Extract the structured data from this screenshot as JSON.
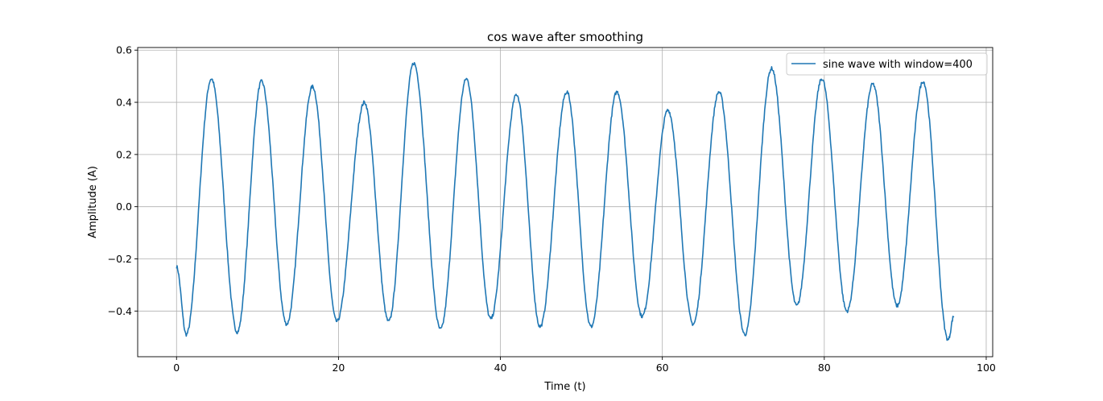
{
  "chart_data": {
    "type": "line",
    "title": "cos wave after smoothing",
    "xlabel": "Time (t)",
    "ylabel": "Amplitude (A)",
    "xlim": [
      -4.8,
      100.8
    ],
    "ylim": [
      -0.575,
      0.61
    ],
    "xticks": [
      0,
      20,
      40,
      60,
      80,
      100
    ],
    "yticks": [
      -0.4,
      -0.2,
      0.0,
      0.2,
      0.4,
      0.6
    ],
    "xtick_labels": [
      "0",
      "20",
      "40",
      "60",
      "80",
      "100"
    ],
    "ytick_labels": [
      "−0.4",
      "−0.2",
      "0.0",
      "0.2",
      "0.4",
      "0.6"
    ],
    "grid": true,
    "legend": "top-right",
    "color": "#1f77b4",
    "series": [
      {
        "name": "sine wave with window=400",
        "start": [
          0.0,
          -0.23
        ],
        "end": [
          96.0,
          -0.42
        ],
        "extrema": [
          [
            0.0,
            -0.23
          ],
          [
            1.2,
            -0.49
          ],
          [
            4.3,
            0.49
          ],
          [
            7.5,
            -0.48
          ],
          [
            10.5,
            0.48
          ],
          [
            13.6,
            -0.45
          ],
          [
            16.8,
            0.46
          ],
          [
            19.8,
            -0.44
          ],
          [
            23.2,
            0.4
          ],
          [
            26.2,
            -0.44
          ],
          [
            29.3,
            0.55
          ],
          [
            32.6,
            -0.47
          ],
          [
            35.8,
            0.49
          ],
          [
            38.8,
            -0.43
          ],
          [
            42.0,
            0.43
          ],
          [
            44.9,
            -0.46
          ],
          [
            48.2,
            0.44
          ],
          [
            51.2,
            -0.46
          ],
          [
            54.4,
            0.44
          ],
          [
            57.5,
            -0.42
          ],
          [
            60.7,
            0.37
          ],
          [
            63.8,
            -0.45
          ],
          [
            67.0,
            0.44
          ],
          [
            70.2,
            -0.49
          ],
          [
            73.5,
            0.53
          ],
          [
            76.6,
            -0.38
          ],
          [
            79.7,
            0.49
          ],
          [
            82.8,
            -0.4
          ],
          [
            86.0,
            0.47
          ],
          [
            89.0,
            -0.38
          ],
          [
            92.2,
            0.48
          ],
          [
            95.3,
            -0.51
          ],
          [
            96.0,
            -0.42
          ]
        ]
      }
    ]
  }
}
